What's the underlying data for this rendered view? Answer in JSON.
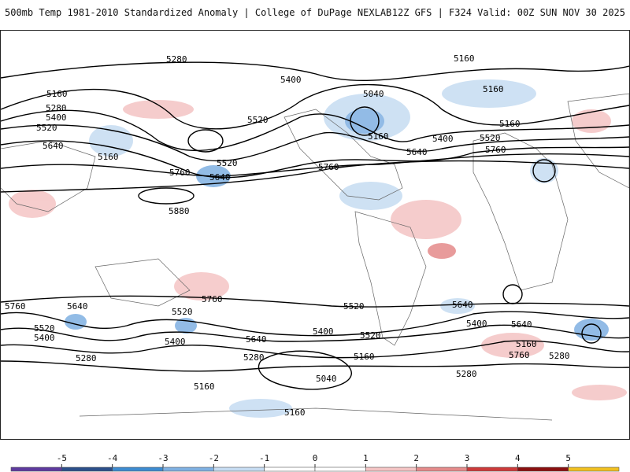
{
  "header": {
    "left_title": "500mb Temp 1981-2010 Standardized Anomaly | College of DuPage NEXLAB",
    "right_title": "12Z GFS | F324 Valid: 00Z SUN NOV 30 2025"
  },
  "map": {
    "contour_labels": [
      "5280",
      "5160",
      "5400",
      "5160",
      "5040",
      "5160",
      "5160",
      "5280",
      "5400",
      "5520",
      "5160",
      "5520",
      "5640",
      "5400",
      "5520",
      "5160",
      "5760",
      "5640",
      "5520",
      "5640",
      "5760",
      "5880",
      "5760",
      "5760",
      "5640",
      "5760",
      "5640",
      "5520",
      "5400",
      "5520",
      "5640",
      "5400",
      "5280",
      "5400",
      "5640",
      "5520",
      "5160",
      "5040",
      "5160",
      "5280",
      "5400",
      "5520",
      "5760",
      "5280",
      "5280",
      "5160",
      "5160"
    ]
  },
  "colorbar": {
    "ticks": [
      "-5",
      "-4",
      "-3",
      "-2",
      "-1",
      "0",
      "1",
      "2",
      "3",
      "4",
      "5"
    ],
    "colors": [
      "#5e3a9e",
      "#2c4f8a",
      "#3d8bd0",
      "#7fb0e2",
      "#c6dcf2",
      "#ffffff",
      "#ffffff",
      "#f4c4c4",
      "#e48a8a",
      "#cc3a3a",
      "#8a1010",
      "#f0c020"
    ]
  }
}
